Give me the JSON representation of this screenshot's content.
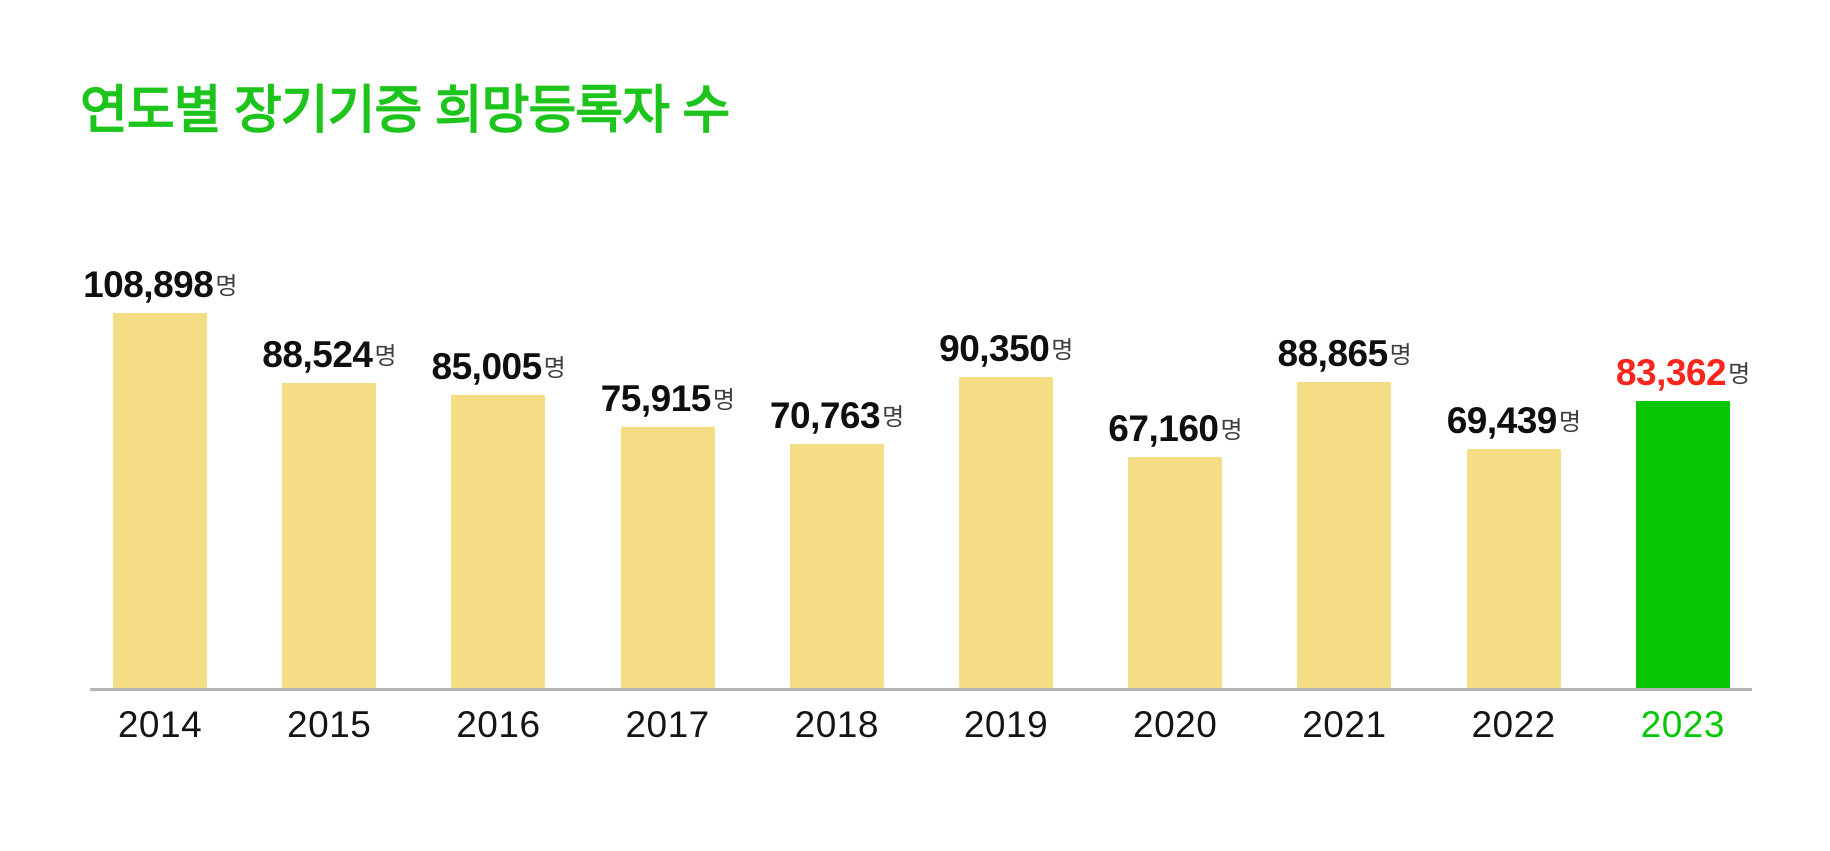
{
  "title": {
    "text": "연도별 장기기증 희망등록자 수",
    "color": "#1cc41c"
  },
  "chart_data": {
    "type": "bar",
    "title": "연도별 장기기증 희망등록자 수",
    "unit": "명",
    "categories": [
      "2014",
      "2015",
      "2016",
      "2017",
      "2018",
      "2019",
      "2020",
      "2021",
      "2022",
      "2023"
    ],
    "values": [
      108898,
      88524,
      85005,
      75915,
      70763,
      90350,
      67160,
      88865,
      69439,
      83362
    ],
    "value_labels": [
      "108,898",
      "88,524",
      "85,005",
      "75,915",
      "70,763",
      "90,350",
      "67,160",
      "88,865",
      "69,439",
      "83,362"
    ],
    "highlight_index": 9,
    "ylim": [
      0,
      115000
    ],
    "grid": false,
    "legend": false,
    "xlabel": "",
    "ylabel": "",
    "colors": {
      "bar": "#f5dd86",
      "highlight_bar": "#05c705",
      "value_label": "#0f0f0f",
      "highlight_value_label": "#fa251c",
      "unit_label": "#3e3e3e",
      "axis_line": "#b4b4b4",
      "tick_label": "#141414",
      "highlight_tick_label": "#05c705"
    }
  }
}
